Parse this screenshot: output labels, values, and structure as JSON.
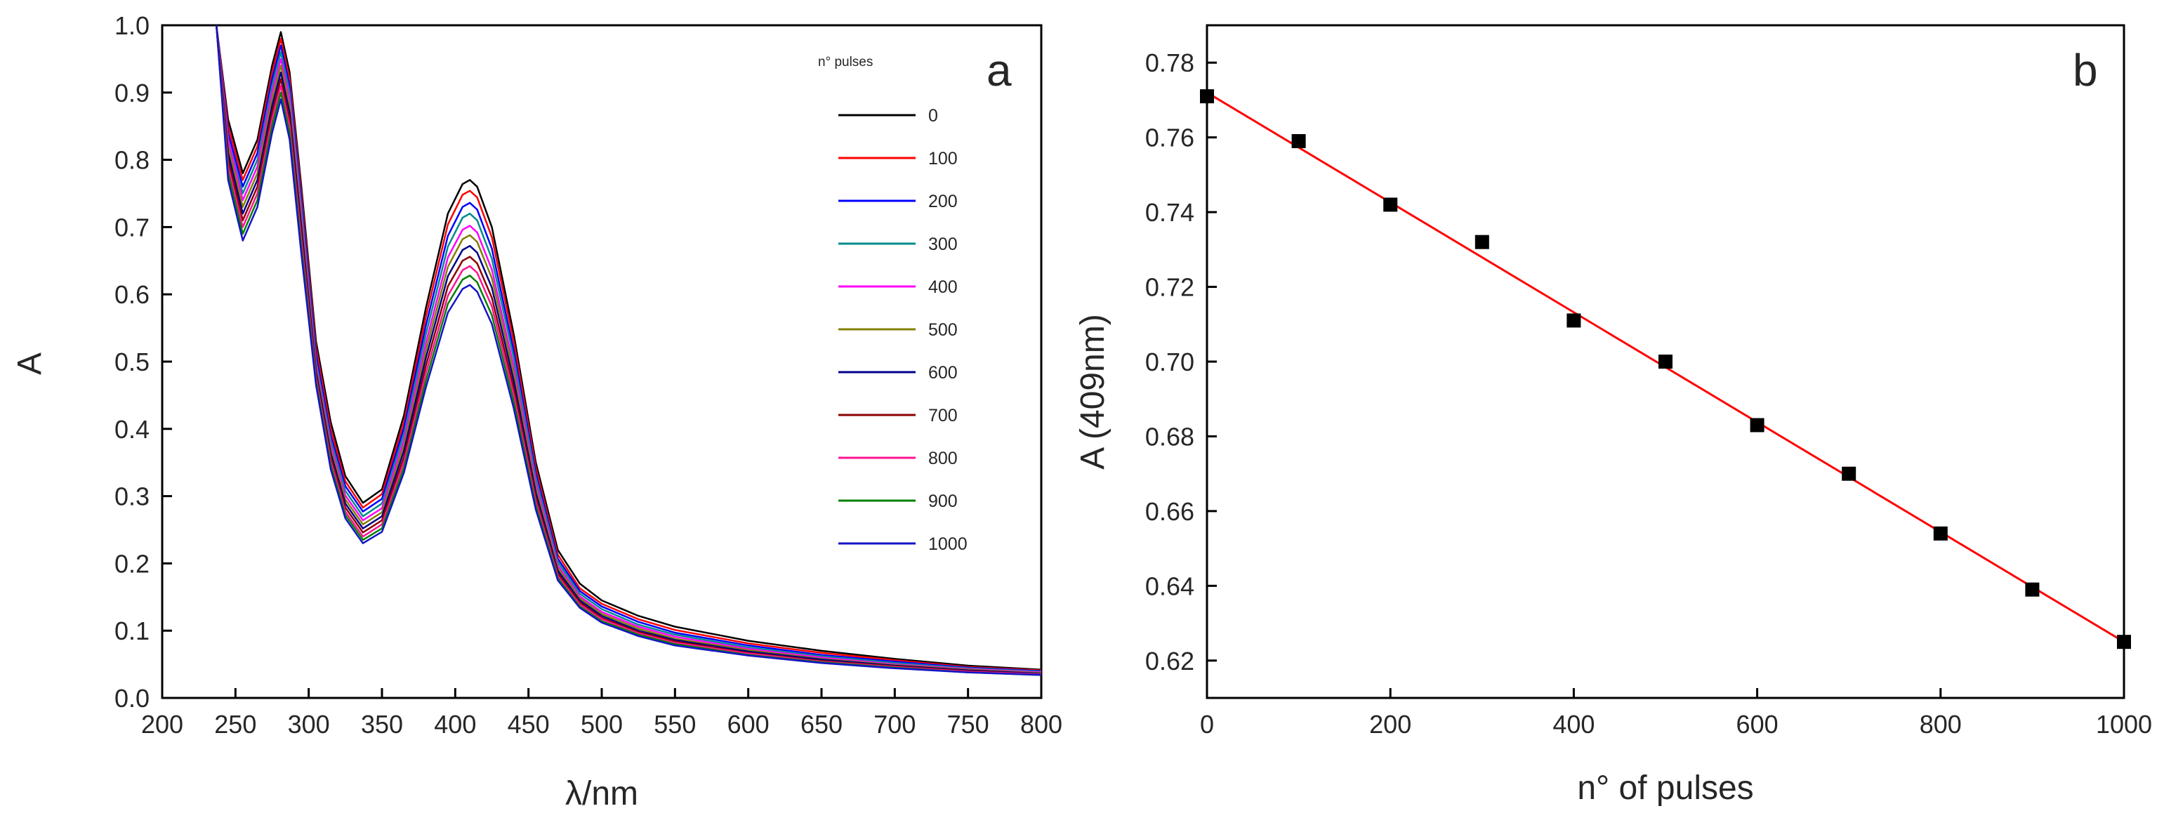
{
  "chart_data": [
    {
      "id": "a",
      "type": "line",
      "panel_label": "a",
      "xlabel": "λ/nm",
      "ylabel": "A",
      "xlim": [
        200,
        800
      ],
      "ylim": [
        0.0,
        1.0
      ],
      "xticks": [
        200,
        250,
        300,
        350,
        400,
        450,
        500,
        550,
        600,
        650,
        700,
        750,
        800
      ],
      "yticks": [
        0.0,
        0.1,
        0.2,
        0.3,
        0.4,
        0.5,
        0.6,
        0.7,
        0.8,
        0.9,
        1.0
      ],
      "ytick_labels": [
        "0.0",
        "0.1",
        "0.2",
        "0.3",
        "0.4",
        "0.5",
        "0.6",
        "0.7",
        "0.8",
        "0.9",
        "1.0"
      ],
      "legend": {
        "title": "n° pulses",
        "placement": "top-right"
      },
      "x": [
        237,
        245,
        255,
        265,
        275,
        281,
        287,
        295,
        305,
        315,
        325,
        337,
        350,
        365,
        380,
        395,
        405,
        410,
        415,
        425,
        440,
        455,
        470,
        485,
        500,
        525,
        550,
        600,
        650,
        700,
        750,
        800
      ],
      "series": [
        {
          "name": "0",
          "color": "#000000",
          "values": [
            1.0,
            0.86,
            0.78,
            0.83,
            0.94,
            0.99,
            0.93,
            0.76,
            0.53,
            0.41,
            0.33,
            0.29,
            0.31,
            0.42,
            0.58,
            0.72,
            0.764,
            0.77,
            0.76,
            0.7,
            0.54,
            0.35,
            0.22,
            0.17,
            0.145,
            0.122,
            0.106,
            0.085,
            0.07,
            0.058,
            0.048,
            0.042
          ]
        },
        {
          "name": "100",
          "color": "#ff0000",
          "values": [
            1.0,
            0.85,
            0.77,
            0.82,
            0.93,
            0.98,
            0.92,
            0.75,
            0.52,
            0.4,
            0.322,
            0.283,
            0.303,
            0.41,
            0.567,
            0.704,
            0.748,
            0.754,
            0.744,
            0.685,
            0.529,
            0.342,
            0.213,
            0.163,
            0.14,
            0.117,
            0.101,
            0.081,
            0.067,
            0.056,
            0.046,
            0.041
          ]
        },
        {
          "name": "200",
          "color": "#0000ff",
          "values": [
            1.0,
            0.84,
            0.76,
            0.81,
            0.92,
            0.97,
            0.91,
            0.74,
            0.51,
            0.39,
            0.315,
            0.277,
            0.296,
            0.401,
            0.554,
            0.687,
            0.73,
            0.736,
            0.726,
            0.668,
            0.516,
            0.334,
            0.207,
            0.159,
            0.136,
            0.113,
            0.097,
            0.078,
            0.064,
            0.054,
            0.045,
            0.04
          ]
        },
        {
          "name": "300",
          "color": "#008b8b",
          "values": [
            1.0,
            0.83,
            0.75,
            0.8,
            0.91,
            0.96,
            0.9,
            0.73,
            0.5,
            0.383,
            0.308,
            0.27,
            0.289,
            0.392,
            0.541,
            0.671,
            0.714,
            0.72,
            0.71,
            0.653,
            0.505,
            0.327,
            0.202,
            0.155,
            0.132,
            0.109,
            0.094,
            0.075,
            0.062,
            0.052,
            0.044,
            0.039
          ]
        },
        {
          "name": "400",
          "color": "#ff00ff",
          "values": [
            1.0,
            0.83,
            0.74,
            0.79,
            0.9,
            0.95,
            0.89,
            0.72,
            0.495,
            0.376,
            0.301,
            0.264,
            0.282,
            0.383,
            0.528,
            0.655,
            0.696,
            0.702,
            0.692,
            0.637,
            0.492,
            0.319,
            0.197,
            0.151,
            0.128,
            0.106,
            0.091,
            0.073,
            0.06,
            0.05,
            0.043,
            0.038
          ]
        },
        {
          "name": "500",
          "color": "#808000",
          "values": [
            1.0,
            0.82,
            0.73,
            0.78,
            0.89,
            0.94,
            0.88,
            0.71,
            0.49,
            0.37,
            0.295,
            0.258,
            0.276,
            0.375,
            0.517,
            0.641,
            0.682,
            0.688,
            0.678,
            0.624,
            0.482,
            0.312,
            0.193,
            0.148,
            0.125,
            0.103,
            0.088,
            0.071,
            0.058,
            0.049,
            0.042,
            0.037
          ]
        },
        {
          "name": "600",
          "color": "#00008b",
          "values": [
            1.0,
            0.81,
            0.72,
            0.77,
            0.88,
            0.93,
            0.87,
            0.7,
            0.485,
            0.364,
            0.289,
            0.252,
            0.27,
            0.367,
            0.506,
            0.627,
            0.666,
            0.672,
            0.662,
            0.61,
            0.471,
            0.305,
            0.189,
            0.145,
            0.122,
            0.1,
            0.086,
            0.069,
            0.057,
            0.048,
            0.041,
            0.036
          ]
        },
        {
          "name": "700",
          "color": "#8b0000",
          "values": [
            1.0,
            0.8,
            0.71,
            0.76,
            0.87,
            0.92,
            0.86,
            0.69,
            0.48,
            0.358,
            0.283,
            0.246,
            0.264,
            0.358,
            0.494,
            0.612,
            0.65,
            0.656,
            0.646,
            0.595,
            0.46,
            0.298,
            0.185,
            0.142,
            0.119,
            0.098,
            0.084,
            0.067,
            0.055,
            0.047,
            0.04,
            0.035
          ]
        },
        {
          "name": "800",
          "color": "#ff1493",
          "values": [
            1.0,
            0.79,
            0.7,
            0.75,
            0.86,
            0.91,
            0.85,
            0.68,
            0.475,
            0.352,
            0.277,
            0.24,
            0.258,
            0.35,
            0.483,
            0.598,
            0.636,
            0.642,
            0.632,
            0.582,
            0.45,
            0.292,
            0.181,
            0.139,
            0.117,
            0.096,
            0.082,
            0.066,
            0.054,
            0.046,
            0.039,
            0.035
          ]
        },
        {
          "name": "900",
          "color": "#008000",
          "values": [
            1.0,
            0.78,
            0.69,
            0.74,
            0.85,
            0.9,
            0.84,
            0.67,
            0.47,
            0.346,
            0.272,
            0.235,
            0.252,
            0.342,
            0.472,
            0.586,
            0.622,
            0.628,
            0.618,
            0.569,
            0.44,
            0.286,
            0.178,
            0.136,
            0.114,
            0.094,
            0.08,
            0.064,
            0.053,
            0.045,
            0.038,
            0.034
          ]
        },
        {
          "name": "1000",
          "color": "#1414c8",
          "values": [
            1.0,
            0.77,
            0.68,
            0.73,
            0.84,
            0.89,
            0.83,
            0.66,
            0.465,
            0.34,
            0.267,
            0.23,
            0.247,
            0.335,
            0.462,
            0.573,
            0.608,
            0.614,
            0.604,
            0.556,
            0.43,
            0.28,
            0.175,
            0.134,
            0.112,
            0.092,
            0.078,
            0.063,
            0.052,
            0.044,
            0.038,
            0.034
          ]
        }
      ]
    },
    {
      "id": "b",
      "type": "scatter",
      "panel_label": "b",
      "xlabel": "n° of pulses",
      "ylabel": "A (409nm)",
      "xlim": [
        0,
        1000
      ],
      "ylim": [
        0.61,
        0.79
      ],
      "xticks": [
        0,
        200,
        400,
        600,
        800,
        1000
      ],
      "yticks": [
        0.62,
        0.64,
        0.66,
        0.68,
        0.7,
        0.72,
        0.74,
        0.76,
        0.78
      ],
      "ytick_labels": [
        "0.62",
        "0.64",
        "0.66",
        "0.68",
        "0.70",
        "0.72",
        "0.74",
        "0.76",
        "0.78"
      ],
      "x": [
        0,
        100,
        200,
        300,
        400,
        500,
        600,
        700,
        800,
        900,
        1000
      ],
      "y": [
        0.771,
        0.759,
        0.742,
        0.732,
        0.711,
        0.7,
        0.683,
        0.67,
        0.654,
        0.639,
        0.625
      ],
      "marker_color": "#000000",
      "fit": {
        "type": "linear",
        "color": "#ff0000",
        "x": [
          0,
          1000
        ],
        "y": [
          0.772,
          0.625
        ]
      }
    }
  ]
}
